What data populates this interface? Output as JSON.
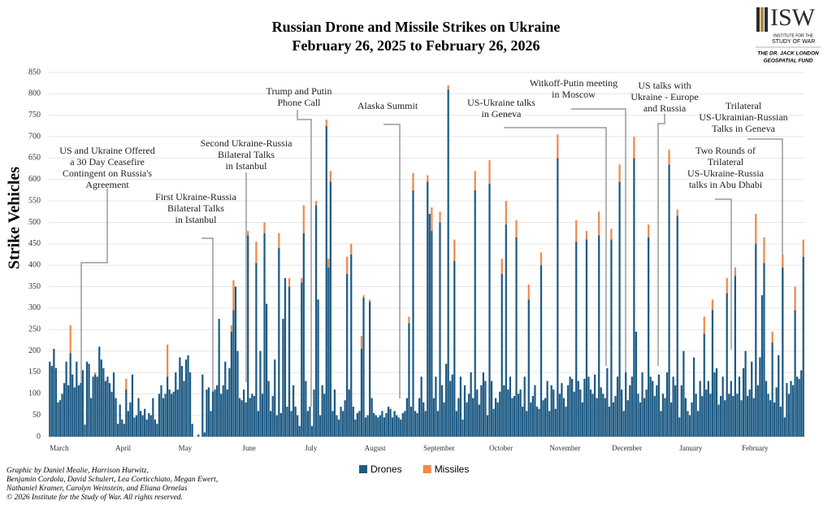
{
  "chart_data": {
    "type": "stacked_bar",
    "title": "Russian Drone and Missile Strikes on Ukraine",
    "subtitle": "February 26, 2025 to February 26, 2026",
    "y_label": "Strike Vehicles",
    "ylim": [
      0,
      850
    ],
    "yticks": [
      0,
      50,
      100,
      150,
      200,
      250,
      300,
      350,
      400,
      450,
      500,
      550,
      600,
      650,
      700,
      750,
      800,
      850
    ],
    "grid": true,
    "categories": [
      null,
      null,
      null,
      "March",
      null,
      null,
      null,
      null,
      null,
      null,
      null,
      null,
      null,
      null,
      null,
      null,
      null,
      null,
      null,
      null,
      null,
      null,
      null,
      null,
      null,
      null,
      null,
      null,
      null,
      null,
      null,
      null,
      null,
      null,
      "April",
      null,
      null,
      null,
      null,
      null,
      null,
      null,
      null,
      null,
      null,
      null,
      null,
      null,
      null,
      null,
      null,
      null,
      null,
      null,
      null,
      null,
      null,
      null,
      null,
      null,
      null,
      null,
      null,
      null,
      "May",
      null,
      null,
      null,
      null,
      null,
      null,
      null,
      null,
      null,
      null,
      null,
      null,
      null,
      null,
      null,
      null,
      null,
      null,
      null,
      null,
      null,
      null,
      null,
      null,
      null,
      null,
      null,
      null,
      null,
      null,
      "June",
      null,
      null,
      null,
      null,
      null,
      null,
      null,
      null,
      null,
      null,
      null,
      null,
      null,
      null,
      null,
      null,
      null,
      null,
      null,
      null,
      null,
      null,
      null,
      null,
      null,
      null,
      null,
      null,
      null,
      "July",
      null,
      null,
      null,
      null,
      null,
      null,
      null,
      null,
      null,
      null,
      null,
      null,
      null,
      null,
      null,
      null,
      null,
      null,
      null,
      null,
      null,
      null,
      null,
      null,
      null,
      null,
      null,
      null,
      null,
      null,
      "August",
      null,
      null,
      null,
      null,
      null,
      null,
      null,
      null,
      null,
      null,
      null,
      null,
      null,
      null,
      null,
      null,
      null,
      null,
      null,
      null,
      null,
      null,
      null,
      null,
      null,
      null,
      null,
      null,
      null,
      null,
      "September",
      null,
      null,
      null,
      null,
      null,
      null,
      null,
      null,
      null,
      null,
      null,
      null,
      null,
      null,
      null,
      null,
      null,
      null,
      null,
      null,
      null,
      null,
      null,
      null,
      null,
      null,
      null,
      null,
      null,
      "October",
      null,
      null,
      null,
      null,
      null,
      null,
      null,
      null,
      null,
      null,
      null,
      null,
      null,
      null,
      null,
      null,
      null,
      null,
      null,
      null,
      null,
      null,
      null,
      null,
      null,
      null,
      null,
      null,
      null,
      null,
      "November",
      null,
      null,
      null,
      null,
      null,
      null,
      null,
      null,
      null,
      null,
      null,
      null,
      null,
      null,
      null,
      null,
      null,
      null,
      null,
      null,
      null,
      null,
      null,
      null,
      null,
      null,
      null,
      null,
      null,
      "December",
      null,
      null,
      null,
      null,
      null,
      null,
      null,
      null,
      null,
      null,
      null,
      null,
      null,
      null,
      null,
      null,
      null,
      null,
      null,
      null,
      null,
      null,
      null,
      null,
      null,
      null,
      null,
      null,
      null,
      null,
      "January",
      null,
      null,
      null,
      null,
      null,
      null,
      null,
      null,
      null,
      null,
      null,
      null,
      null,
      null,
      null,
      null,
      null,
      null,
      null,
      null,
      null,
      null,
      null,
      null,
      null,
      null,
      null,
      null,
      null,
      null,
      "February",
      null,
      null,
      null,
      null,
      null,
      null,
      null,
      null,
      null,
      null,
      null,
      null,
      null,
      null,
      null,
      null,
      null,
      null,
      null,
      null,
      null,
      null,
      null,
      null,
      null
    ],
    "series": [
      {
        "name": "Drones",
        "color": "#1d5a84",
        "values": [
          175,
          165,
          205,
          160,
          80,
          85,
          100,
          125,
          175,
          120,
          195,
          145,
          115,
          175,
          120,
          125,
          155,
          28,
          175,
          170,
          90,
          140,
          145,
          140,
          210,
          180,
          160,
          130,
          140,
          125,
          105,
          150,
          90,
          30,
          75,
          40,
          30,
          110,
          60,
          80,
          145,
          45,
          50,
          90,
          60,
          50,
          65,
          40,
          55,
          50,
          90,
          40,
          30,
          100,
          120,
          90,
          100,
          140,
          110,
          100,
          105,
          150,
          110,
          185,
          165,
          130,
          180,
          190,
          150,
          30,
          0,
          0,
          5,
          0,
          145,
          10,
          110,
          115,
          60,
          105,
          110,
          120,
          275,
          100,
          120,
          175,
          110,
          160,
          245,
          295,
          350,
          200,
          90,
          85,
          110,
          80,
          470,
          90,
          100,
          95,
          405,
          60,
          200,
          100,
          475,
          310,
          130,
          60,
          95,
          180,
          50,
          440,
          55,
          275,
          370,
          70,
          350,
          60,
          120,
          70,
          50,
          25,
          360,
          475,
          130,
          60,
          70,
          25,
          110,
          540,
          320,
          50,
          120,
          100,
          725,
          395,
          595,
          60,
          110,
          50,
          40,
          70,
          60,
          85,
          380,
          110,
          425,
          70,
          40,
          55,
          60,
          205,
          325,
          45,
          50,
          315,
          90,
          55,
          50,
          45,
          50,
          60,
          45,
          55,
          70,
          65,
          45,
          60,
          50,
          45,
          40,
          55,
          60,
          90,
          265,
          70,
          575,
          60,
          55,
          90,
          140,
          80,
          60,
          595,
          520,
          480,
          90,
          140,
          60,
          500,
          120,
          80,
          170,
          810,
          130,
          145,
          410,
          60,
          90,
          140,
          40,
          120,
          80,
          100,
          150,
          90,
          575,
          110,
          75,
          120,
          150,
          130,
          50,
          590,
          130,
          65,
          90,
          80,
          105,
          380,
          120,
          495,
          110,
          140,
          90,
          95,
          465,
          100,
          110,
          70,
          140,
          60,
          320,
          80,
          95,
          120,
          70,
          65,
          400,
          85,
          90,
          130,
          60,
          120,
          110,
          65,
          650,
          100,
          125,
          90,
          70,
          120,
          140,
          135,
          105,
          455,
          130,
          110,
          80,
          135,
          460,
          140,
          110,
          100,
          145,
          90,
          470,
          115,
          100,
          90,
          160,
          70,
          460,
          80,
          95,
          140,
          595,
          110,
          60,
          150,
          85,
          120,
          140,
          650,
          245,
          100,
          80,
          150,
          90,
          110,
          465,
          140,
          130,
          95,
          120,
          145,
          60,
          100,
          90,
          150,
          635,
          80,
          140,
          120,
          515,
          45,
          120,
          200,
          90,
          60,
          50,
          80,
          185,
          100,
          60,
          130,
          95,
          240,
          110,
          130,
          100,
          295,
          150,
          160,
          75,
          95,
          140,
          85,
          335,
          100,
          130,
          95,
          375,
          100,
          140,
          85,
          160,
          200,
          95,
          110,
          175,
          90,
          450,
          120,
          185,
          330,
          405,
          130,
          100,
          85,
          220,
          80,
          115,
          190,
          70,
          395,
          45,
          125,
          100,
          130,
          120,
          295,
          140,
          135,
          155,
          420
        ]
      },
      {
        "name": "Missiles",
        "color": "#ef8a4a",
        "values": [
          0,
          0,
          0,
          0,
          0,
          0,
          0,
          0,
          0,
          0,
          65,
          0,
          0,
          0,
          0,
          0,
          0,
          0,
          0,
          0,
          0,
          0,
          5,
          0,
          0,
          0,
          0,
          0,
          0,
          0,
          0,
          0,
          0,
          0,
          0,
          0,
          0,
          25,
          0,
          0,
          0,
          0,
          0,
          0,
          0,
          0,
          0,
          0,
          0,
          0,
          0,
          0,
          0,
          0,
          0,
          0,
          0,
          75,
          0,
          0,
          0,
          0,
          0,
          0,
          0,
          0,
          0,
          0,
          0,
          0,
          0,
          0,
          0,
          0,
          0,
          0,
          0,
          0,
          0,
          0,
          0,
          0,
          0,
          0,
          0,
          0,
          0,
          0,
          15,
          70,
          0,
          0,
          0,
          0,
          0,
          0,
          10,
          0,
          0,
          0,
          50,
          0,
          0,
          0,
          25,
          0,
          0,
          0,
          0,
          0,
          0,
          35,
          0,
          0,
          0,
          0,
          20,
          0,
          0,
          0,
          0,
          0,
          10,
          65,
          0,
          0,
          0,
          0,
          0,
          10,
          0,
          0,
          0,
          0,
          15,
          20,
          25,
          0,
          0,
          0,
          0,
          0,
          0,
          0,
          40,
          0,
          25,
          0,
          0,
          0,
          0,
          30,
          5,
          0,
          0,
          5,
          0,
          0,
          0,
          0,
          0,
          0,
          0,
          0,
          0,
          0,
          0,
          0,
          0,
          0,
          0,
          0,
          0,
          0,
          15,
          0,
          40,
          0,
          0,
          0,
          0,
          0,
          0,
          15,
          0,
          55,
          0,
          0,
          0,
          25,
          0,
          0,
          0,
          10,
          0,
          0,
          50,
          0,
          0,
          0,
          0,
          0,
          0,
          0,
          0,
          0,
          45,
          0,
          0,
          0,
          0,
          0,
          0,
          55,
          0,
          0,
          0,
          0,
          0,
          35,
          0,
          55,
          0,
          0,
          0,
          0,
          40,
          0,
          0,
          0,
          0,
          0,
          35,
          0,
          0,
          0,
          0,
          0,
          30,
          0,
          0,
          0,
          0,
          0,
          0,
          0,
          55,
          0,
          0,
          0,
          0,
          0,
          0,
          0,
          0,
          50,
          0,
          0,
          0,
          0,
          20,
          0,
          0,
          0,
          0,
          0,
          55,
          0,
          0,
          0,
          0,
          0,
          25,
          0,
          0,
          0,
          40,
          0,
          0,
          0,
          0,
          0,
          0,
          50,
          0,
          0,
          0,
          0,
          0,
          0,
          30,
          0,
          0,
          0,
          0,
          0,
          0,
          0,
          0,
          0,
          35,
          0,
          0,
          0,
          15,
          0,
          0,
          0,
          0,
          0,
          0,
          0,
          0,
          0,
          0,
          0,
          0,
          40,
          0,
          0,
          0,
          25,
          0,
          0,
          0,
          0,
          0,
          0,
          35,
          0,
          0,
          0,
          20,
          0,
          0,
          0,
          0,
          0,
          0,
          0,
          0,
          0,
          70,
          0,
          0,
          0,
          60,
          0,
          0,
          0,
          25,
          0,
          0,
          0,
          0,
          30,
          0,
          0,
          0,
          0,
          0,
          55,
          0,
          0,
          0,
          40
        ]
      }
    ],
    "annotations": [
      {
        "lines": [
          "US and Ukraine Offered",
          "a 30 Day Ceasefire",
          "Contingent on Russia's",
          "Agreement"
        ]
      },
      {
        "lines": [
          "First Ukraine-Russia",
          "Bilateral Talks",
          "in Istanbul"
        ]
      },
      {
        "lines": [
          "Second Ukraine-Russia",
          "Bilateral Talks",
          "in Istanbul"
        ]
      },
      {
        "lines": [
          "Trump and Putin",
          "Phone Call"
        ]
      },
      {
        "lines": [
          "Alaska Summit"
        ]
      },
      {
        "lines": [
          "US-Ukraine talks",
          "in Geneva"
        ]
      },
      {
        "lines": [
          "Witkoff-Putin meeting",
          "in Moscow"
        ]
      },
      {
        "lines": [
          "US talks with",
          "Ukraine - Europe",
          "and Russia"
        ]
      },
      {
        "lines": [
          "Trilateral",
          "US-Ukrainian-Russian",
          "Talks in Geneva"
        ]
      },
      {
        "lines": [
          "Two Rounds of",
          "Trilateral",
          "US-Ukraine-Russia",
          "talks in Abu Dhabi"
        ]
      }
    ],
    "credits": [
      "Graphic by Daniel Mealie, Harrison Hurwitz,",
      "Benjamin Cordola, David Schulert, Lea Corticchiato, Megan Ewert,",
      "Nathaniel Kramer, Carolyn Weinstein, and Eliana Ornelas",
      "© 2026 Institute for the Study of War. All rights reserved."
    ],
    "logo": {
      "name": "ISW",
      "line1": "INSTITUTE FOR THE",
      "line2": "STUDY OF WAR",
      "fund1": "THE DR. JACK LONDON",
      "fund2": "GEOSPATIAL FUND"
    }
  }
}
